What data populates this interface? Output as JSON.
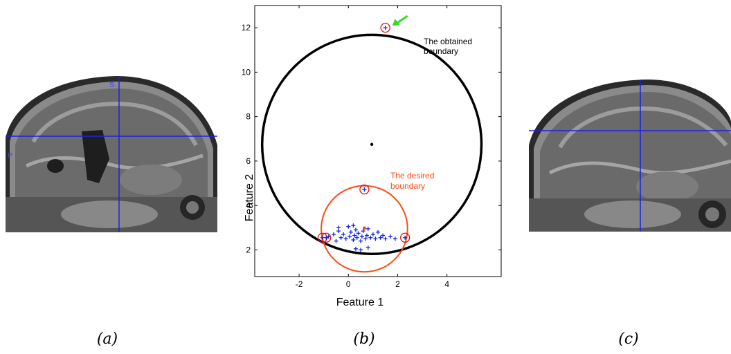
{
  "captions": {
    "a": "(a)",
    "b": "(b)",
    "c": "(c)"
  },
  "mri_left": {
    "marker_top": "S",
    "marker_left": "P"
  },
  "chart_data": {
    "type": "scatter",
    "xlabel": "Feature 1",
    "ylabel": "Feature 2",
    "xlim": [
      -3.8,
      6.2
    ],
    "ylim": [
      0.8,
      13
    ],
    "xticks": [
      -2,
      0,
      2,
      4
    ],
    "yticks": [
      2,
      4,
      6,
      8,
      10,
      12
    ],
    "grid": false,
    "annotations": {
      "obtained": [
        "The obtained",
        "boundary"
      ],
      "desired": [
        "The desired",
        "boundary"
      ]
    },
    "obtained_boundary": {
      "center": [
        0.95,
        6.75
      ],
      "radius": 4.45,
      "color": "#000000"
    },
    "desired_boundary": {
      "center": [
        0.65,
        2.95
      ],
      "radius": 1.75,
      "color": "#ff4a14"
    },
    "center_point": [
      0.65,
      2.98
    ],
    "obtained_center_point": [
      0.95,
      6.75
    ],
    "inliers": [
      [
        -0.8,
        2.6
      ],
      [
        -0.6,
        2.7
      ],
      [
        -0.5,
        2.4
      ],
      [
        -0.4,
        2.85
      ],
      [
        -0.3,
        2.55
      ],
      [
        -0.2,
        2.7
      ],
      [
        -0.1,
        2.5
      ],
      [
        0.0,
        3.05
      ],
      [
        0.05,
        2.6
      ],
      [
        0.1,
        2.8
      ],
      [
        0.2,
        2.45
      ],
      [
        0.25,
        2.65
      ],
      [
        0.3,
        2.9
      ],
      [
        0.35,
        2.55
      ],
      [
        0.4,
        2.75
      ],
      [
        0.5,
        2.4
      ],
      [
        0.55,
        2.6
      ],
      [
        0.6,
        2.85
      ],
      [
        0.7,
        2.5
      ],
      [
        0.75,
        2.65
      ],
      [
        0.8,
        2.95
      ],
      [
        0.9,
        2.55
      ],
      [
        1.0,
        2.7
      ],
      [
        1.1,
        2.5
      ],
      [
        1.2,
        2.8
      ],
      [
        1.3,
        2.55
      ],
      [
        1.4,
        2.65
      ],
      [
        1.5,
        2.5
      ],
      [
        1.7,
        2.6
      ],
      [
        1.9,
        2.5
      ],
      [
        0.3,
        2.05
      ],
      [
        0.5,
        2.0
      ],
      [
        0.8,
        2.1
      ],
      [
        -0.4,
        3.0
      ],
      [
        0.2,
        3.1
      ]
    ],
    "support_points": [
      [
        -1.05,
        2.55
      ],
      [
        -0.9,
        2.55
      ],
      [
        0.65,
        4.72
      ],
      [
        2.3,
        2.55
      ],
      [
        1.5,
        12.0
      ]
    ],
    "outlier_arrow": {
      "target": [
        1.5,
        12.0
      ],
      "color": "#33dd22"
    },
    "inlier_color": "#1020e0",
    "support_circle_color": "#e01010"
  }
}
